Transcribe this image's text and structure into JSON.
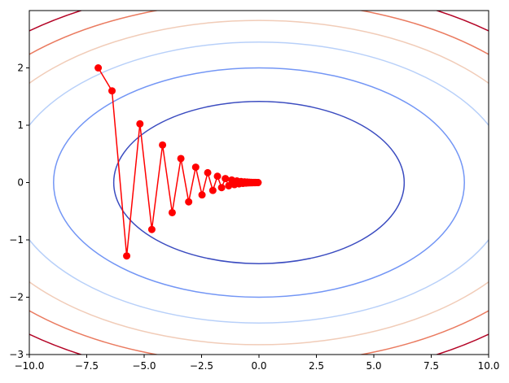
{
  "chart_data": {
    "type": "line",
    "title": "",
    "xlabel": "",
    "ylabel": "",
    "xlim": [
      -10,
      10
    ],
    "ylim": [
      -3,
      3
    ],
    "grid": false,
    "x_ticks": [
      -10,
      -7.5,
      -5,
      -2.5,
      0,
      2.5,
      5,
      7.5,
      10
    ],
    "x_tick_labels": [
      "−10.0",
      "−7.5",
      "−5.0",
      "−2.5",
      "0.0",
      "2.5",
      "5.0",
      "7.5",
      "10.0"
    ],
    "y_ticks": [
      -3,
      -2,
      -1,
      0,
      1,
      2
    ],
    "y_tick_labels": [
      "−3",
      "−2",
      "−1",
      "0",
      "1",
      "2"
    ],
    "contour": {
      "function": "f(x, y) = x^2 / 20 + y^2",
      "levels": [
        {
          "value": 2,
          "color": "#3b4cc0"
        },
        {
          "value": 4,
          "color": "#7396f5"
        },
        {
          "value": 6,
          "color": "#b8d0f9"
        },
        {
          "value": 8,
          "color": "#f1ccb8"
        },
        {
          "value": 10,
          "color": "#ea7b60"
        },
        {
          "value": 12,
          "color": "#b40426"
        }
      ]
    },
    "series": [
      {
        "color": "#ff0000",
        "marker": "circle",
        "points": [
          [
            -7.0,
            2.0
          ],
          [
            -6.4,
            1.6
          ],
          [
            -5.76,
            -1.28
          ],
          [
            -5.184,
            1.024
          ],
          [
            -4.666,
            -0.819
          ],
          [
            -4.199,
            0.655
          ],
          [
            -3.779,
            -0.524
          ],
          [
            -3.401,
            0.419
          ],
          [
            -3.061,
            -0.336
          ],
          [
            -2.755,
            0.268
          ],
          [
            -2.48,
            -0.215
          ],
          [
            -2.232,
            0.172
          ],
          [
            -2.009,
            -0.137
          ],
          [
            -1.808,
            0.11
          ],
          [
            -1.627,
            -0.088
          ],
          [
            -1.464,
            0.07
          ],
          [
            -1.318,
            -0.056
          ],
          [
            -1.186,
            0.045
          ],
          [
            -1.067,
            -0.036
          ],
          [
            -0.961,
            0.029
          ],
          [
            -0.865,
            -0.023
          ],
          [
            -0.778,
            0.018
          ],
          [
            -0.7,
            -0.015
          ],
          [
            -0.63,
            0.012
          ],
          [
            -0.567,
            -0.009
          ],
          [
            -0.511,
            0.008
          ],
          [
            -0.46,
            -0.006
          ],
          [
            -0.414,
            0.005
          ],
          [
            -0.372,
            -0.004
          ],
          [
            -0.335,
            0.003
          ],
          [
            -0.302,
            -0.003
          ],
          [
            -0.271,
            0.002
          ],
          [
            -0.244,
            -0.002
          ],
          [
            -0.22,
            0.001
          ],
          [
            -0.198,
            -0.001
          ],
          [
            -0.178,
            0.001
          ],
          [
            -0.16,
            -0.001
          ],
          [
            -0.144,
            0.001
          ],
          [
            -0.13,
            0
          ],
          [
            -0.117,
            0
          ],
          [
            -0.105,
            0
          ],
          [
            -0.095,
            0
          ],
          [
            -0.085,
            0
          ],
          [
            -0.077,
            0
          ],
          [
            -0.069,
            0
          ],
          [
            -0.062,
            0
          ],
          [
            -0.056,
            0
          ],
          [
            -0.05,
            0
          ],
          [
            -0.045,
            0
          ],
          [
            -0.041,
            0
          ]
        ]
      }
    ]
  }
}
